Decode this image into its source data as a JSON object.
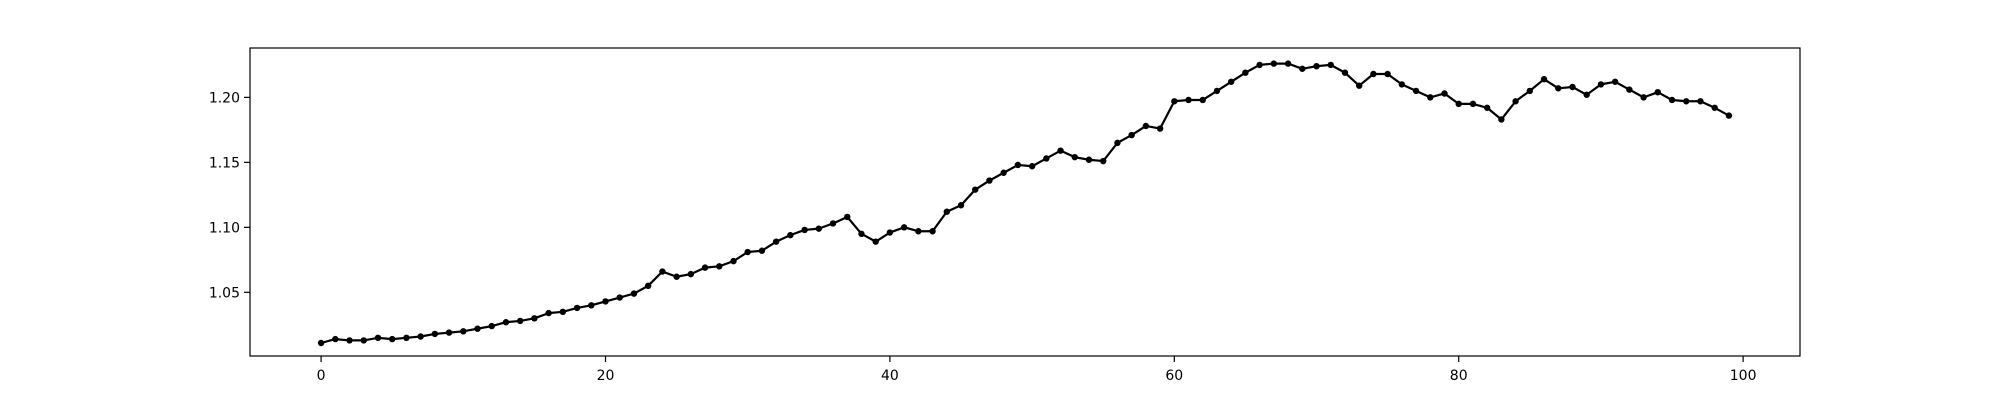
{
  "chart_data": {
    "type": "line",
    "title": "",
    "xlabel": "",
    "ylabel": "",
    "xlim": [
      -5,
      104
    ],
    "ylim": [
      1.001,
      1.238
    ],
    "grid": false,
    "legend": "none",
    "line_color": "#000000",
    "marker": "circle",
    "x_ticks": [
      {
        "value": 0,
        "label": "0"
      },
      {
        "value": 20,
        "label": "20"
      },
      {
        "value": 40,
        "label": "40"
      },
      {
        "value": 60,
        "label": "60"
      },
      {
        "value": 80,
        "label": "80"
      },
      {
        "value": 100,
        "label": "100"
      }
    ],
    "y_ticks": [
      {
        "value": 1.05,
        "label": "1.05"
      },
      {
        "value": 1.1,
        "label": "1.10"
      },
      {
        "value": 1.15,
        "label": "1.15"
      },
      {
        "value": 1.2,
        "label": "1.20"
      }
    ],
    "series": [
      {
        "values": [
          1.011,
          1.014,
          1.013,
          1.013,
          1.015,
          1.014,
          1.015,
          1.016,
          1.018,
          1.019,
          1.02,
          1.022,
          1.024,
          1.027,
          1.028,
          1.03,
          1.034,
          1.035,
          1.038,
          1.04,
          1.043,
          1.046,
          1.049,
          1.055,
          1.066,
          1.062,
          1.064,
          1.069,
          1.07,
          1.074,
          1.081,
          1.082,
          1.089,
          1.094,
          1.098,
          1.099,
          1.103,
          1.108,
          1.095,
          1.089,
          1.096,
          1.1,
          1.097,
          1.097,
          1.112,
          1.117,
          1.129,
          1.136,
          1.142,
          1.148,
          1.147,
          1.153,
          1.159,
          1.154,
          1.152,
          1.151,
          1.165,
          1.171,
          1.178,
          1.176,
          1.197,
          1.198,
          1.198,
          1.205,
          1.212,
          1.219,
          1.225,
          1.226,
          1.226,
          1.222,
          1.224,
          1.225,
          1.219,
          1.209,
          1.218,
          1.218,
          1.21,
          1.205,
          1.2,
          1.203,
          1.195,
          1.195,
          1.192,
          1.183,
          1.197,
          1.205,
          1.214,
          1.207,
          1.208,
          1.202,
          1.21,
          1.212,
          1.206,
          1.2,
          1.204,
          1.198,
          1.197,
          1.197,
          1.192,
          1.186
        ]
      }
    ]
  }
}
